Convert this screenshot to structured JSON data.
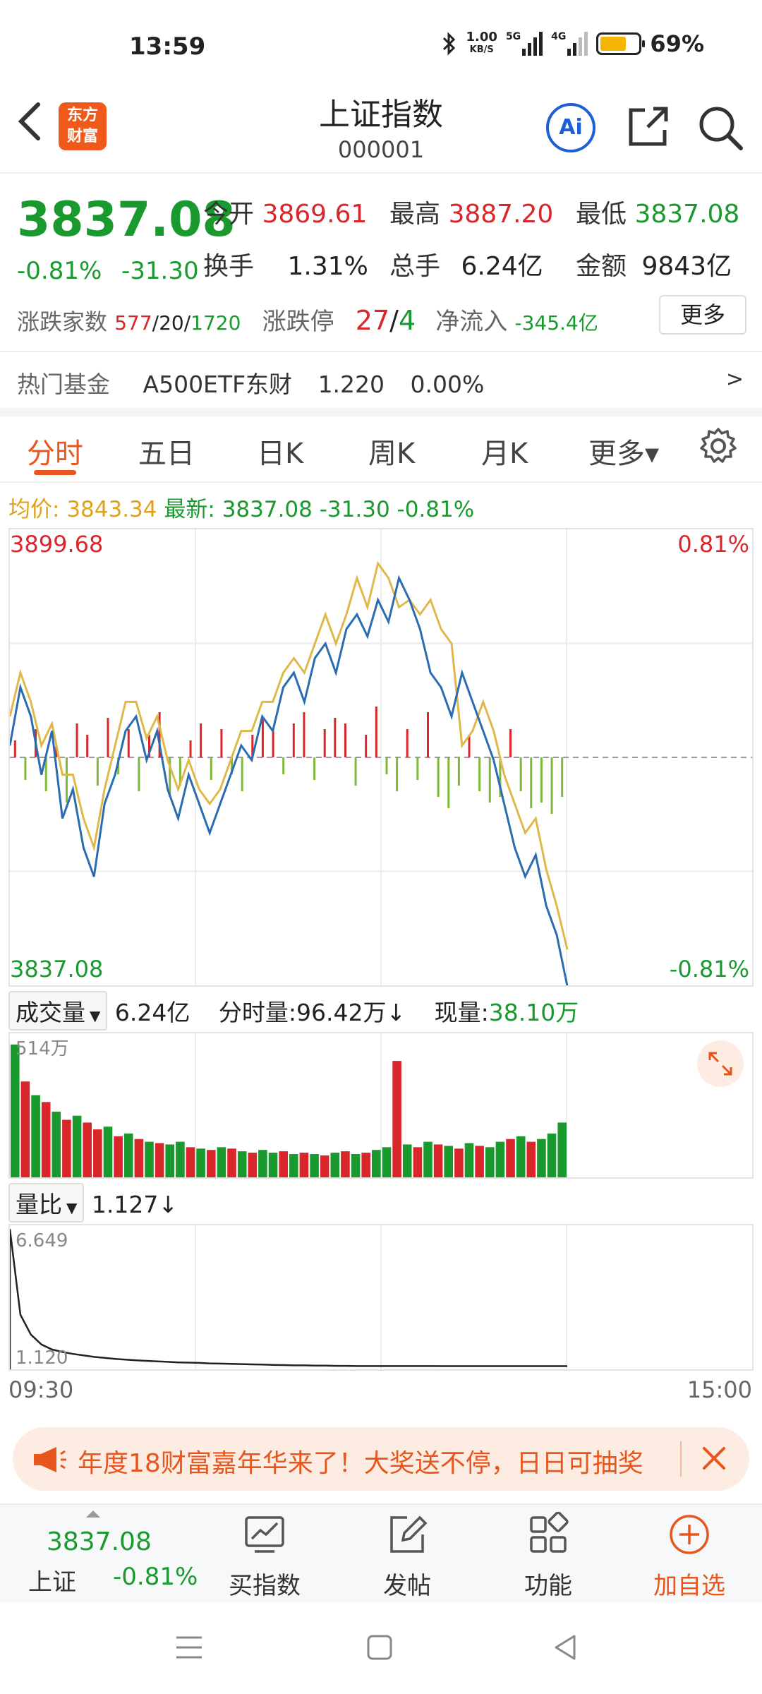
{
  "status_bar": {
    "time": "13:59",
    "net_speed_value": "1.00",
    "net_speed_unit": "KB/S",
    "sig1_label": "5G",
    "sig2_label": "4G",
    "battery": "69%"
  },
  "header": {
    "logo_top": "东方",
    "logo_bottom": "财富",
    "title": "上证指数",
    "code": "000001",
    "ai_label": "Ai"
  },
  "quote": {
    "price": "3837.08",
    "change_pct": "-0.81%",
    "change": "-31.30",
    "open_label": "今开",
    "open": "3869.61",
    "high_label": "最高",
    "high": "3887.20",
    "low_label": "最低",
    "low": "3837.08",
    "turnover_label": "换手",
    "turnover": "1.31%",
    "volume_label": "总手",
    "volume": "6.24亿",
    "amount_label": "金额",
    "amount": "9843亿",
    "breadth_label": "涨跌家数",
    "breadth_up": "577",
    "breadth_flat": "20",
    "breadth_down": "1720",
    "limit_label": "涨跌停",
    "limit_up": "27",
    "limit_down": "4",
    "netflow_label": "净流入",
    "netflow": "-345.4亿",
    "more_label": "更多",
    "slash": "/"
  },
  "fund": {
    "label": "热门基金",
    "name": "A500ETF东财",
    "price": "1.220",
    "pct": "0.00%",
    "arrow": ">"
  },
  "tabs": [
    "分时",
    "五日",
    "日K",
    "周K",
    "月K",
    "更多▾"
  ],
  "chart_header": {
    "avg_label": "均价:",
    "avg": "3843.34",
    "latest_label": "最新:",
    "latest": "3837.08",
    "chg": "-31.30",
    "pct": "-0.81%"
  },
  "chart_data": {
    "type": "line",
    "y_max_label": "3899.68",
    "y_min_label": "3837.08",
    "pct_max_label": "0.81%",
    "pct_min_label": "-0.81%",
    "ylim": [
      3837.08,
      3899.68
    ],
    "prev_close": 3868.38,
    "time_start": "09:30",
    "time_end": "15:00",
    "series": [
      {
        "color": "#2b6cb0",
        "values": [
          3870,
          3878,
          3874,
          3866,
          3872,
          3860,
          3864,
          3856,
          3852,
          3862,
          3866,
          3872,
          3874,
          3868,
          3872,
          3864,
          3860,
          3866,
          3862,
          3858,
          3862,
          3866,
          3870,
          3868,
          3874,
          3872,
          3878,
          3880,
          3876,
          3882,
          3884,
          3880,
          3886,
          3888,
          3885,
          3890,
          3887,
          3893,
          3890,
          3886,
          3880,
          3878,
          3874,
          3880,
          3876,
          3872,
          3868,
          3862,
          3856,
          3852,
          3855,
          3848,
          3844,
          3837
        ]
      },
      {
        "color": "#e0b84a",
        "values": [
          3874,
          3880,
          3876,
          3870,
          3873,
          3866,
          3866,
          3860,
          3856,
          3864,
          3870,
          3876,
          3876,
          3871,
          3874,
          3868,
          3864,
          3868,
          3864,
          3862,
          3864,
          3868,
          3872,
          3872,
          3876,
          3876,
          3880,
          3882,
          3880,
          3884,
          3888,
          3884,
          3888,
          3893,
          3889,
          3895,
          3893,
          3889,
          3890,
          3888,
          3890,
          3886,
          3884,
          3870,
          3872,
          3876,
          3872,
          3866,
          3862,
          3858,
          3860,
          3853,
          3848,
          3842
        ]
      }
    ],
    "bars": [
      3,
      -4,
      5,
      -6,
      2,
      -8,
      6,
      4,
      -5,
      7,
      -3,
      5,
      -6,
      4,
      8,
      -7,
      -5,
      3,
      6,
      -4,
      5,
      -3,
      -6,
      4,
      7,
      5,
      -3,
      6,
      8,
      -4,
      5,
      7,
      6,
      -5,
      4,
      9,
      -3,
      -6,
      5,
      -4,
      8,
      -7,
      -9,
      -5,
      4,
      -6,
      -8,
      -7,
      5,
      -6,
      -9,
      -8,
      -10,
      -7
    ],
    "volume": {
      "max_label": "514万",
      "values": [
        97,
        70,
        60,
        55,
        48,
        42,
        45,
        40,
        35,
        37,
        30,
        32,
        28,
        26,
        25,
        24,
        26,
        22,
        21,
        20,
        22,
        21,
        19,
        18,
        20,
        18,
        19,
        17,
        18,
        17,
        16,
        18,
        19,
        17,
        18,
        20,
        22,
        85,
        24,
        22,
        26,
        24,
        23,
        21,
        25,
        23,
        22,
        26,
        28,
        30,
        26,
        28,
        32,
        40
      ],
      "colors": [
        "g",
        "r",
        "g",
        "r",
        "g",
        "r",
        "g",
        "r",
        "r",
        "g",
        "r",
        "g",
        "r",
        "g",
        "r",
        "g",
        "g",
        "r",
        "g",
        "r",
        "g",
        "r",
        "g",
        "r",
        "g",
        "g",
        "r",
        "g",
        "r",
        "g",
        "r",
        "g",
        "r",
        "g",
        "r",
        "g",
        "g",
        "r",
        "g",
        "r",
        "g",
        "r",
        "g",
        "r",
        "g",
        "r",
        "g",
        "g",
        "r",
        "g",
        "r",
        "g",
        "g",
        "g"
      ]
    },
    "ratio": {
      "max_label": "6.649",
      "min_label": "1.120",
      "values": [
        6.649,
        3.2,
        2.4,
        2.0,
        1.8,
        1.7,
        1.62,
        1.56,
        1.5,
        1.46,
        1.42,
        1.39,
        1.36,
        1.34,
        1.32,
        1.3,
        1.28,
        1.27,
        1.26,
        1.24,
        1.23,
        1.22,
        1.21,
        1.2,
        1.19,
        1.18,
        1.17,
        1.16,
        1.16,
        1.15,
        1.15,
        1.14,
        1.14,
        1.13,
        1.13,
        1.13,
        1.13,
        1.13,
        1.13,
        1.13,
        1.13,
        1.127,
        1.127,
        1.127,
        1.127,
        1.127,
        1.127,
        1.127,
        1.127,
        1.127,
        1.127,
        1.127,
        1.127,
        1.127
      ]
    }
  },
  "volume_header": {
    "label": "成交量",
    "total": "6.24亿",
    "minute_label": "分时量:",
    "minute": "96.42万↓",
    "current_label": "现量:",
    "current": "38.10万"
  },
  "ratio_header": {
    "label": "量比",
    "value": "1.127↓"
  },
  "banner": {
    "text": "年度18财富嘉年华来了！大奖送不停，日日可抽奖"
  },
  "bottom_bar": {
    "price": "3837.08",
    "name": "上证",
    "pct": "-0.81%",
    "buy_label": "买指数",
    "post_label": "发帖",
    "func_label": "功能",
    "watch_label": "加自选"
  },
  "colors": {
    "up": "#d8262a",
    "down": "#1a9a2e",
    "accent": "#e8561d"
  }
}
